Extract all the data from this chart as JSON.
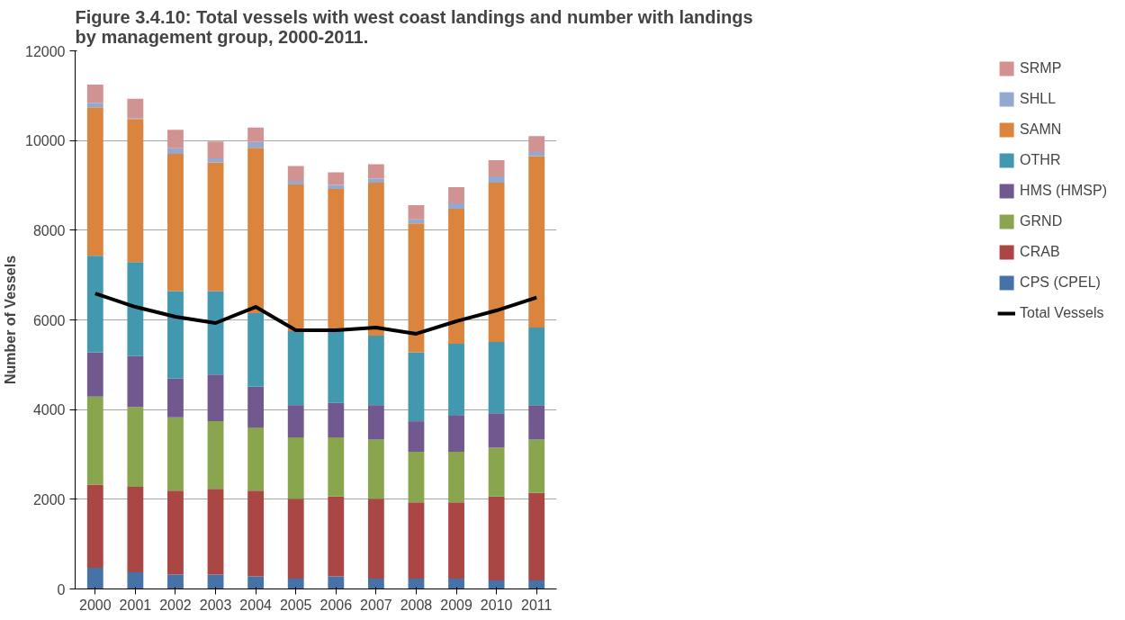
{
  "chart_data": {
    "type": "bar",
    "stacked": true,
    "title": "Figure 3.4.10:  Total vessels with west coast landings and number with landings by management group, 2000-2011.",
    "ylabel": "Number of Vessels",
    "categories": [
      "2000",
      "2001",
      "2002",
      "2003",
      "2004",
      "2005",
      "2006",
      "2007",
      "2008",
      "2009",
      "2010",
      "2011"
    ],
    "ylim": [
      0,
      12000
    ],
    "yticks": [
      0,
      2000,
      4000,
      6000,
      8000,
      10000,
      12000
    ],
    "grid": "y",
    "legend": "right",
    "series": [
      {
        "name": "CPS (CPEL)",
        "color": "#4572a7",
        "values": [
          470,
          370,
          320,
          320,
          280,
          230,
          280,
          230,
          230,
          230,
          190,
          190
        ]
      },
      {
        "name": "CRAB",
        "color": "#aa4643",
        "values": [
          1860,
          1910,
          1870,
          1910,
          1910,
          1780,
          1780,
          1780,
          1700,
          1700,
          1870,
          1950
        ]
      },
      {
        "name": "GRND",
        "color": "#89a54e",
        "values": [
          1960,
          1780,
          1640,
          1510,
          1410,
          1370,
          1320,
          1320,
          1130,
          1130,
          1090,
          1190
        ]
      },
      {
        "name": "HMS (HMSP)",
        "color": "#71588f",
        "values": [
          990,
          1130,
          860,
          1040,
          910,
          720,
          770,
          770,
          680,
          820,
          770,
          770
        ]
      },
      {
        "name": "OTHR",
        "color": "#4198af",
        "values": [
          2150,
          2100,
          1950,
          1860,
          1640,
          1650,
          1600,
          1550,
          1540,
          1590,
          1590,
          1730
        ]
      },
      {
        "name": "SAMN",
        "color": "#db843d",
        "values": [
          3310,
          3190,
          3060,
          2870,
          3690,
          3270,
          3170,
          3410,
          2870,
          3010,
          3550,
          3820
        ]
      },
      {
        "name": "SHLL",
        "color": "#93a9cf",
        "values": [
          100,
          20,
          130,
          90,
          130,
          80,
          90,
          90,
          90,
          120,
          140,
          90
        ]
      },
      {
        "name": "SRMP",
        "color": "#d19392",
        "values": [
          410,
          430,
          410,
          380,
          320,
          330,
          280,
          320,
          320,
          360,
          360,
          360
        ]
      },
      {
        "name": "Total Vessels",
        "type": "line",
        "color": "#000000",
        "values": [
          6590,
          6290,
          6070,
          5930,
          6290,
          5770,
          5770,
          5830,
          5690,
          5970,
          6210,
          6500
        ]
      }
    ]
  }
}
